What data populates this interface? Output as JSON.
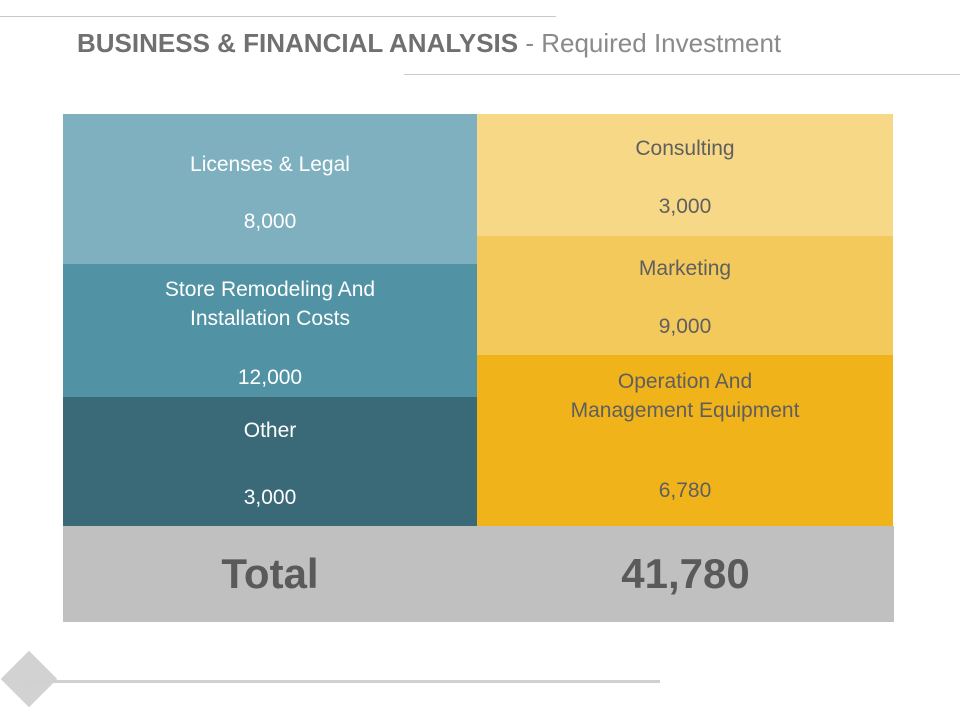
{
  "header": {
    "title_bold": "BUSINESS & FINANCIAL ANALYSIS",
    "title_sep": " - ",
    "title_light": "Required Investment"
  },
  "left_column": [
    {
      "label_line1": "Licenses & Legal",
      "value": "8,000",
      "color": "#7fb0c0"
    },
    {
      "label_line1": "Store Remodeling And",
      "label_line2": "Installation Costs",
      "value": "12,000",
      "color": "#5193a4"
    },
    {
      "label_line1": "Other",
      "value": "3,000",
      "color": "#3a6a78"
    }
  ],
  "right_column": [
    {
      "label_line1": "Consulting",
      "value": "3,000",
      "color": "#f7d886"
    },
    {
      "label_line1": "Marketing",
      "value": "9,000",
      "color": "#f3c95c"
    },
    {
      "label_line1": "Operation And",
      "label_line2": "Management Equipment",
      "value": "6,780",
      "color": "#f0b31a"
    }
  ],
  "total": {
    "label": "Total",
    "value": "41,780",
    "color": "#c0c0c0"
  }
}
